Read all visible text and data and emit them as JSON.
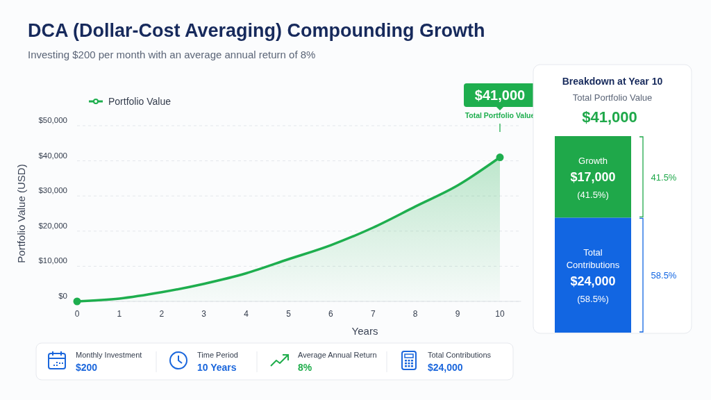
{
  "chart_data": [
    {
      "type": "line",
      "title": "DCA (Dollar-Cost Averaging) Compounding Growth",
      "subtitle": "Investing $200 per month with an average annual return of 8%",
      "xlabel": "Years",
      "ylabel": "Portfolio Value (USD)",
      "xlim": [
        0,
        10.5
      ],
      "ylim": [
        0,
        50000
      ],
      "xticks": [
        0,
        1,
        2,
        3,
        4,
        5,
        6,
        7,
        8,
        9,
        10
      ],
      "yticks": [
        {
          "value": 0,
          "label": "$0"
        },
        {
          "value": 10000,
          "label": "$10,000"
        },
        {
          "value": 20000,
          "label": "$20,000"
        },
        {
          "value": 30000,
          "label": "$30,000"
        },
        {
          "value": 40000,
          "label": "$40,000"
        },
        {
          "value": 50000,
          "label": "$50,000"
        }
      ],
      "grid": "y",
      "legend": "top left",
      "series": [
        {
          "name": "Portfolio Value",
          "type": "area",
          "color": "#1eae4e",
          "x": [
            0,
            1,
            2,
            3,
            4,
            5,
            6,
            7,
            8,
            9,
            10
          ],
          "values": [
            0,
            800,
            2600,
            5000,
            8000,
            12000,
            16000,
            21000,
            27000,
            33000,
            41000
          ]
        },
        {
          "type": "scatter",
          "color": "#1eae4e",
          "x": [
            0,
            10
          ],
          "values": [
            0,
            41000
          ]
        }
      ],
      "annotations": [
        "$41,000",
        "Total Portfolio Value"
      ]
    },
    {
      "type": "bar",
      "stacked": true,
      "title": "Breakdown at Year 10",
      "subtitle": "Total Portfolio Value",
      "totals": [
        "$41,000"
      ],
      "categories": [
        null
      ],
      "series": [
        {
          "name": "Total Contributions",
          "color": "#1266e2",
          "values": [
            24000
          ],
          "value_labels": [
            "$24,000"
          ]
        },
        {
          "name": "Growth",
          "color": "#1fa84a",
          "values": [
            17000
          ],
          "value_labels": [
            "$17,000"
          ]
        }
      ],
      "annotations": [
        "(58.5%)",
        "58.5%",
        "(41.5%)",
        "41.5%"
      ]
    },
    {
      "type": "other",
      "categories": [
        "Monthly Investment",
        "Time Period",
        "Average Annual Return",
        "Total Contributions"
      ],
      "value_labels": [
        "$200",
        "10 Years",
        "8%",
        "$24,000"
      ],
      "colors": [
        "#1a66dc",
        "#1a66dc",
        "#1fad4b",
        "#1a66dc"
      ]
    }
  ]
}
